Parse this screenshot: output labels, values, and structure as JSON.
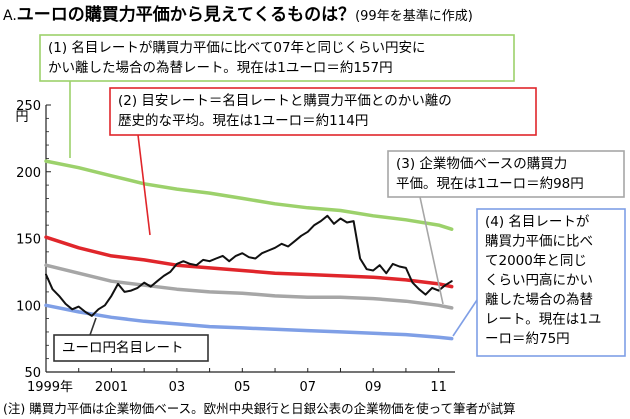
{
  "chart_data": {
    "type": "line",
    "title_prefix": "A.",
    "title": "ユーロの購買力平価から見えてくるものは？",
    "subtitle": "(99年を基準に作成)",
    "yunit": "円",
    "ylim": [
      50,
      250
    ],
    "yticks": [
      "250",
      "200",
      "150",
      "100",
      "50"
    ],
    "ytick_values": [
      250,
      200,
      150,
      100,
      50
    ],
    "xlim": [
      1999.0,
      2011.5
    ],
    "xticks": [
      "1999年",
      "2001",
      "03",
      "05",
      "07",
      "09",
      "11"
    ],
    "xtick_values": [
      1999,
      2001,
      2003,
      2005,
      2007,
      2009,
      2011
    ],
    "series": [
      {
        "key": "s1",
        "color": "#9cd16b",
        "x": [
          1999.0,
          2000.0,
          2001.0,
          2002.0,
          2003.0,
          2004.0,
          2005.0,
          2006.0,
          2007.0,
          2008.0,
          2009.0,
          2010.0,
          2011.0,
          2011.4
        ],
        "y": [
          208,
          203,
          197,
          191,
          187,
          184,
          180,
          176,
          173,
          171,
          167,
          164,
          160,
          157
        ]
      },
      {
        "key": "s2",
        "color": "#e0262b",
        "x": [
          1999.0,
          2000.0,
          2001.0,
          2002.0,
          2003.0,
          2004.0,
          2005.0,
          2006.0,
          2007.0,
          2008.0,
          2009.0,
          2010.0,
          2011.0,
          2011.4
        ],
        "y": [
          151,
          143,
          137,
          134,
          130,
          128,
          126,
          124,
          123,
          122,
          121,
          119,
          116,
          114
        ]
      },
      {
        "key": "s3",
        "color": "#a6a6a6",
        "x": [
          1999.0,
          2000.0,
          2001.0,
          2002.0,
          2003.0,
          2004.0,
          2005.0,
          2006.0,
          2007.0,
          2008.0,
          2009.0,
          2010.0,
          2011.0,
          2011.4
        ],
        "y": [
          130,
          124,
          118,
          115,
          112,
          110,
          109,
          107,
          106,
          106,
          105,
          103,
          100,
          98
        ]
      },
      {
        "key": "s4",
        "color": "#7f9fe6",
        "x": [
          1999.0,
          2000.0,
          2001.0,
          2002.0,
          2003.0,
          2004.0,
          2005.0,
          2006.0,
          2007.0,
          2008.0,
          2009.0,
          2010.0,
          2011.0,
          2011.4
        ],
        "y": [
          100,
          95,
          91,
          88,
          86,
          84,
          83,
          82,
          81,
          80,
          79,
          78,
          76,
          75
        ]
      },
      {
        "key": "s5",
        "color": "#111111",
        "x": [
          1999.0,
          1999.2,
          1999.4,
          1999.6,
          1999.8,
          2000.0,
          2000.2,
          2000.4,
          2000.6,
          2000.8,
          2001.0,
          2001.2,
          2001.4,
          2001.6,
          2001.8,
          2002.0,
          2002.2,
          2002.4,
          2002.6,
          2002.8,
          2003.0,
          2003.2,
          2003.4,
          2003.6,
          2003.8,
          2004.0,
          2004.2,
          2004.4,
          2004.6,
          2004.8,
          2005.0,
          2005.2,
          2005.4,
          2005.6,
          2005.8,
          2006.0,
          2006.2,
          2006.4,
          2006.6,
          2006.8,
          2007.0,
          2007.2,
          2007.4,
          2007.6,
          2007.8,
          2008.0,
          2008.2,
          2008.4,
          2008.6,
          2008.8,
          2009.0,
          2009.2,
          2009.4,
          2009.6,
          2009.8,
          2010.0,
          2010.2,
          2010.4,
          2010.6,
          2010.8,
          2011.0,
          2011.2,
          2011.4
        ],
        "y": [
          123,
          112,
          107,
          101,
          97,
          99,
          95,
          92,
          97,
          100,
          107,
          116,
          110,
          111,
          113,
          117,
          114,
          118,
          122,
          125,
          131,
          133,
          131,
          130,
          134,
          133,
          135,
          137,
          133,
          137,
          139,
          136,
          135,
          139,
          141,
          143,
          146,
          144,
          148,
          152,
          155,
          160,
          163,
          167,
          161,
          165,
          162,
          163,
          135,
          127,
          126,
          130,
          124,
          131,
          129,
          128,
          117,
          112,
          108,
          113,
          111,
          115,
          118
        ]
      }
    ],
    "annotations": [
      {
        "key": "a1",
        "color": "#9cd16b",
        "lines": [
          "(1) 名目レートが購買力平価に比べて07年と同じくらい円安に",
          "かい離した場合の為替レート。現在は1ユーロ＝約157円"
        ]
      },
      {
        "key": "a2",
        "color": "#e0262b",
        "lines": [
          "(2) 目安レート＝名目レートと購買力平価とのかい離の",
          "歴史的な平均。現在は1ユーロ＝約114円"
        ]
      },
      {
        "key": "a3",
        "color": "#a6a6a6",
        "lines": [
          "(3) 企業物価ベースの購買力",
          "平価。現在は1ユーロ＝約98円"
        ]
      },
      {
        "key": "a4",
        "color": "#7f9fe6",
        "lines": [
          "(4) 名目レートが",
          "購買力平価に比べ",
          "て2000年と同じ",
          "くらい円高にかい",
          "離した場合の為替",
          "レート。現在は1ユ",
          "ーロ＝約75円"
        ]
      },
      {
        "key": "a5",
        "color": "#333333",
        "lines": [
          "ユーロ円名目レート"
        ]
      }
    ],
    "footnote": "(注) 購買力平価は企業物価ベース。欧州中央銀行と日銀公表の企業物価を使って筆者が試算",
    "grid": false,
    "legend": "callout boxes"
  }
}
